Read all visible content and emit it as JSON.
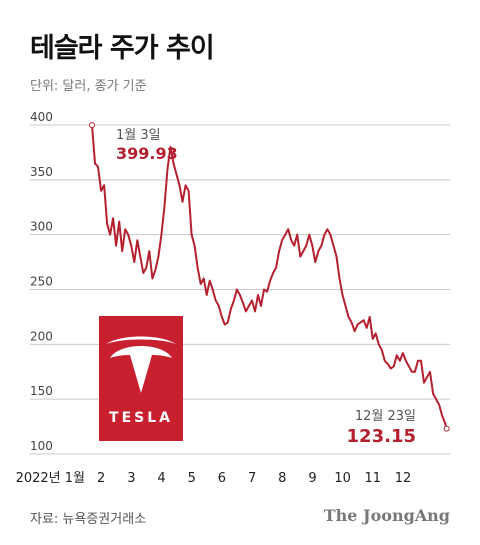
{
  "header": {
    "title": "테슬라 주가 추이",
    "subtitle": "단위: 달러, 종가 기준"
  },
  "footer": {
    "source": "자료: 뉴욕증권거래소",
    "brand": "The JoongAng"
  },
  "logo": {
    "wordmark": "TESLA",
    "color": "#c8202f"
  },
  "colors": {
    "series": "#b5202e",
    "grid": "#c9c9c9",
    "annotation": "#b5202e"
  },
  "chart_data": {
    "type": "line",
    "title": "테슬라 주가 추이",
    "subtitle": "단위: 달러, 종가 기준",
    "xlabel": "",
    "ylabel": "",
    "ylim": [
      100,
      400
    ],
    "yticks": [
      100,
      150,
      200,
      250,
      300,
      350,
      400
    ],
    "x_tick_labels": [
      "2022년 1월",
      "2",
      "3",
      "4",
      "5",
      "6",
      "7",
      "8",
      "9",
      "10",
      "11",
      "12"
    ],
    "grid": true,
    "x_unit": "month of 2022",
    "x": [
      1.0,
      1.1,
      1.2,
      1.3,
      1.4,
      1.5,
      1.6,
      1.7,
      1.8,
      1.9,
      2.0,
      2.1,
      2.2,
      2.3,
      2.4,
      2.5,
      2.6,
      2.7,
      2.8,
      2.9,
      3.0,
      3.1,
      3.2,
      3.3,
      3.4,
      3.5,
      3.6,
      3.7,
      3.8,
      3.9,
      4.0,
      4.1,
      4.2,
      4.3,
      4.4,
      4.5,
      4.6,
      4.7,
      4.8,
      4.9,
      5.0,
      5.1,
      5.2,
      5.3,
      5.4,
      5.5,
      5.6,
      5.7,
      5.8,
      5.9,
      6.0,
      6.1,
      6.2,
      6.3,
      6.4,
      6.5,
      6.6,
      6.7,
      6.8,
      6.9,
      7.0,
      7.1,
      7.2,
      7.3,
      7.4,
      7.5,
      7.6,
      7.7,
      7.8,
      7.9,
      8.0,
      8.1,
      8.2,
      8.3,
      8.4,
      8.5,
      8.6,
      8.7,
      8.8,
      8.9,
      9.0,
      9.1,
      9.2,
      9.3,
      9.4,
      9.5,
      9.6,
      9.7,
      9.8,
      9.9,
      10.0,
      10.1,
      10.2,
      10.3,
      10.4,
      10.5,
      10.6,
      10.7,
      10.8,
      10.9,
      11.0,
      11.1,
      11.2,
      11.3,
      11.4,
      11.5,
      11.6,
      11.7,
      11.8,
      11.9,
      12.0,
      12.1,
      12.2,
      12.3,
      12.4,
      12.5,
      12.6,
      12.7,
      12.75
    ],
    "series": [
      {
        "values": [
          400,
          365,
          362,
          340,
          345,
          310,
          300,
          315,
          290,
          312,
          285,
          305,
          300,
          290,
          275,
          295,
          280,
          265,
          270,
          285,
          260,
          268,
          280,
          300,
          325,
          360,
          380,
          365,
          355,
          345,
          330,
          345,
          340,
          300,
          290,
          270,
          255,
          260,
          245,
          258,
          250,
          240,
          235,
          225,
          218,
          220,
          232,
          240,
          250,
          245,
          238,
          230,
          235,
          240,
          230,
          245,
          235,
          250,
          248,
          258,
          265,
          270,
          285,
          295,
          300,
          305,
          295,
          290,
          300,
          280,
          285,
          290,
          300,
          290,
          275,
          285,
          290,
          300,
          305,
          300,
          290,
          280,
          260,
          245,
          235,
          225,
          220,
          212,
          218,
          220,
          222,
          215,
          225,
          205,
          210,
          200,
          195,
          185,
          182,
          178,
          180,
          190,
          185,
          192,
          185,
          180,
          175,
          175,
          185,
          185,
          165,
          170,
          175,
          155,
          150,
          145,
          135,
          128,
          123.15
        ]
      }
    ],
    "annotations": [
      {
        "label": "1월 3일",
        "value": "399.93",
        "x": 1.0,
        "y": 399.93
      },
      {
        "label": "12월 23일",
        "value": "123.15",
        "x": 12.75,
        "y": 123.15
      }
    ]
  }
}
